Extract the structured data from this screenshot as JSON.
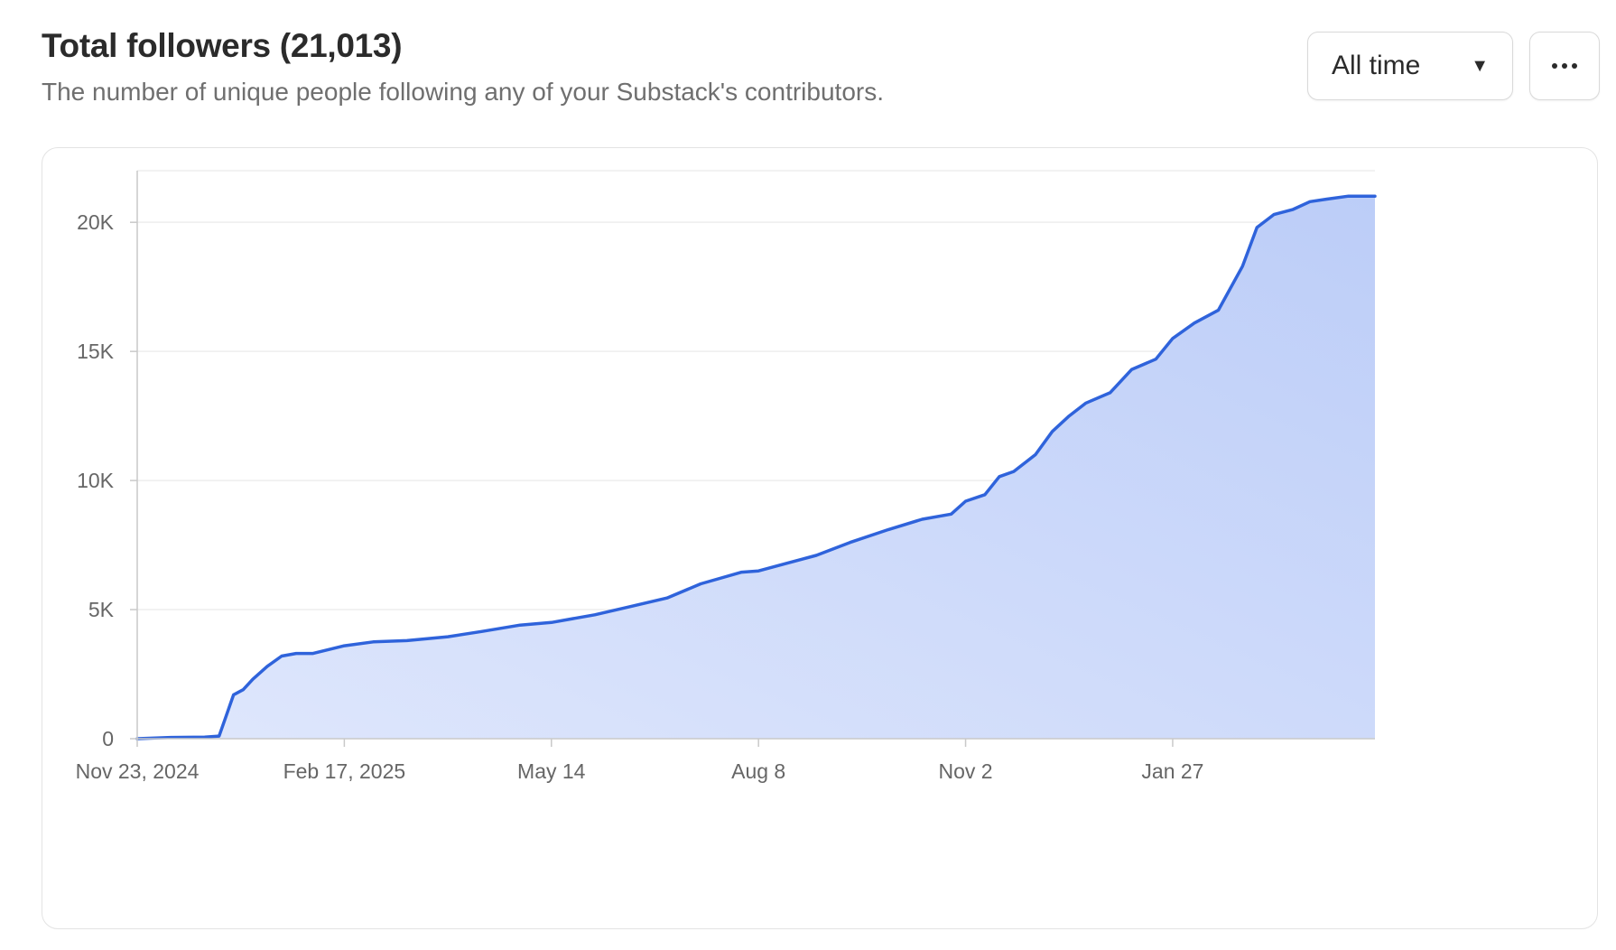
{
  "header": {
    "title": "Total followers (21,013)",
    "subtitle": "The number of unique people following any of your Substack's contributors."
  },
  "controls": {
    "range_label": "All time",
    "caret_icon": "caret-down-icon",
    "more_icon": "more-horizontal-icon"
  },
  "colors": {
    "line": "#2F63DB",
    "area_top": "#BCCDF8",
    "area_bottom": "#DFE7FC",
    "grid": "#EEEEEE",
    "axis": "#C9C9C9"
  },
  "chart_data": {
    "type": "area",
    "title": "Total followers (21,013)",
    "xlabel": "",
    "ylabel": "",
    "ylim": [
      0,
      22000
    ],
    "y_ticks": [
      0,
      5000,
      10000,
      15000,
      20000
    ],
    "y_tick_labels": [
      "0",
      "5K",
      "10K",
      "15K",
      "20K"
    ],
    "x_range": [
      "2024-11-23",
      "2026-04-21"
    ],
    "x_ticks": [
      "2024-11-23",
      "2025-02-17",
      "2025-05-14",
      "2025-08-08",
      "2025-11-02",
      "2026-01-27"
    ],
    "x_tick_labels": [
      "Nov 23, 2024",
      "Feb 17, 2025",
      "May 14",
      "Aug 8",
      "Nov 2",
      "Jan 27"
    ],
    "grid": true,
    "legend": "none",
    "series": [
      {
        "x": [
          "2024-11-23",
          "2024-12-07",
          "2024-12-21",
          "2024-12-27",
          "2024-12-30",
          "2025-01-02",
          "2025-01-06",
          "2025-01-10",
          "2025-01-16",
          "2025-01-22",
          "2025-01-28",
          "2025-02-04",
          "2025-02-17",
          "2025-03-01",
          "2025-03-15",
          "2025-04-01",
          "2025-04-15",
          "2025-05-01",
          "2025-05-14",
          "2025-06-01",
          "2025-06-15",
          "2025-07-01",
          "2025-07-15",
          "2025-08-01",
          "2025-08-08",
          "2025-08-20",
          "2025-09-01",
          "2025-09-15",
          "2025-10-01",
          "2025-10-15",
          "2025-10-27",
          "2025-11-02",
          "2025-11-10",
          "2025-11-16",
          "2025-11-22",
          "2025-12-01",
          "2025-12-08",
          "2025-12-15",
          "2025-12-22",
          "2026-01-01",
          "2026-01-10",
          "2026-01-20",
          "2026-01-27",
          "2026-02-05",
          "2026-02-15",
          "2026-02-25",
          "2026-03-03",
          "2026-03-10",
          "2026-03-18",
          "2026-03-25",
          "2026-04-01",
          "2026-04-10",
          "2026-04-15",
          "2026-04-21"
        ],
        "y": [
          0,
          50,
          60,
          100,
          900,
          1700,
          1900,
          2300,
          2800,
          3200,
          3300,
          3300,
          3600,
          3750,
          3800,
          3950,
          4150,
          4400,
          4500,
          4800,
          5100,
          5450,
          6000,
          6450,
          6500,
          6800,
          7100,
          7600,
          8100,
          8500,
          8700,
          9200,
          9450,
          10150,
          10350,
          11000,
          11900,
          12500,
          13000,
          13400,
          14300,
          14700,
          15500,
          16100,
          16600,
          18300,
          19800,
          20300,
          20500,
          20800,
          20900,
          21013,
          21013,
          21013
        ]
      }
    ]
  }
}
